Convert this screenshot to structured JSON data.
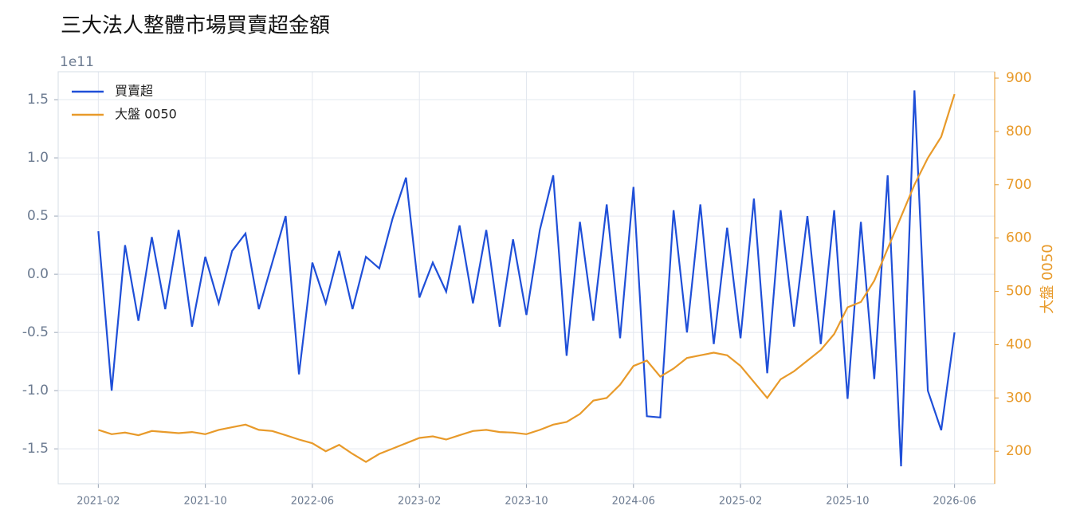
{
  "chart_data": {
    "type": "line",
    "title": "三大法人整體市場買賣超金額",
    "y_offset_text": "1e11",
    "y2_label": "大盤 0050",
    "x": [
      "2021-02",
      "2021-03",
      "2021-04",
      "2021-05",
      "2021-06",
      "2021-07",
      "2021-08",
      "2021-09",
      "2021-10",
      "2021-11",
      "2021-12",
      "2022-01",
      "2022-02",
      "2022-03",
      "2022-04",
      "2022-05",
      "2022-06",
      "2022-07",
      "2022-08",
      "2022-09",
      "2022-10",
      "2022-11",
      "2022-12",
      "2023-01",
      "2023-02",
      "2023-03",
      "2023-04",
      "2023-05",
      "2023-06",
      "2023-07",
      "2023-08",
      "2023-09",
      "2023-10",
      "2023-11",
      "2023-12",
      "2024-01",
      "2024-02",
      "2024-03",
      "2024-04",
      "2024-05",
      "2024-06",
      "2024-07",
      "2024-08",
      "2024-09",
      "2024-10",
      "2024-11",
      "2024-12",
      "2025-01",
      "2025-02",
      "2025-03",
      "2025-04",
      "2025-05",
      "2025-06",
      "2025-07",
      "2025-08",
      "2025-09",
      "2025-10",
      "2025-11",
      "2025-12",
      "2026-01",
      "2026-02",
      "2026-03",
      "2026-04",
      "2026-05",
      "2026-06"
    ],
    "xlim": [
      "2020-11",
      "2026-09"
    ],
    "xticks": [
      "2021-02",
      "2021-10",
      "2022-06",
      "2023-02",
      "2023-10",
      "2024-06",
      "2025-02",
      "2025-10",
      "2026-06"
    ],
    "ylim": [
      -1.8,
      1.74
    ],
    "yticks": [
      -1.5,
      -1.0,
      -0.5,
      0.0,
      0.5,
      1.0,
      1.5
    ],
    "y2lim": [
      139,
      912
    ],
    "y2ticks": [
      200,
      300,
      400,
      500,
      600,
      700,
      800,
      900
    ],
    "grid": true,
    "legend": "upper left",
    "series": [
      {
        "name": "買賣超",
        "color": "#1f4fd8",
        "values": [
          0.37,
          -1.0,
          0.25,
          -0.4,
          0.32,
          -0.3,
          0.38,
          -0.45,
          0.15,
          -0.25,
          0.2,
          0.35,
          -0.3,
          0.1,
          0.5,
          -0.86,
          0.1,
          -0.25,
          0.2,
          -0.3,
          0.15,
          0.05,
          0.48,
          0.83,
          -0.2,
          0.1,
          -0.15,
          0.42,
          -0.25,
          0.38,
          -0.45,
          0.3,
          -0.35,
          0.38,
          0.85,
          -0.7,
          0.45,
          -0.4,
          0.6,
          -0.55,
          0.75,
          -1.22,
          -1.23,
          0.55,
          -0.5,
          0.6,
          -0.6,
          0.4,
          -0.55,
          0.65,
          -0.85,
          0.55,
          -0.45,
          0.5,
          -0.6,
          0.55,
          -1.07,
          0.45,
          -0.9,
          0.85,
          -1.65,
          1.58,
          -1.0,
          -1.34,
          -0.5
        ]
      },
      {
        "name": "大盤 0050",
        "color": "#e89a2a",
        "axis": "y2",
        "values": [
          240,
          232,
          235,
          230,
          238,
          236,
          234,
          236,
          232,
          240,
          245,
          250,
          240,
          238,
          230,
          222,
          215,
          200,
          212,
          195,
          180,
          195,
          205,
          215,
          225,
          228,
          222,
          230,
          238,
          240,
          236,
          235,
          232,
          240,
          250,
          255,
          270,
          295,
          300,
          325,
          360,
          370,
          340,
          355,
          375,
          380,
          385,
          380,
          360,
          330,
          300,
          335,
          350,
          370,
          390,
          420,
          470,
          480,
          520,
          580,
          640,
          700,
          750,
          790,
          870
        ]
      }
    ]
  }
}
